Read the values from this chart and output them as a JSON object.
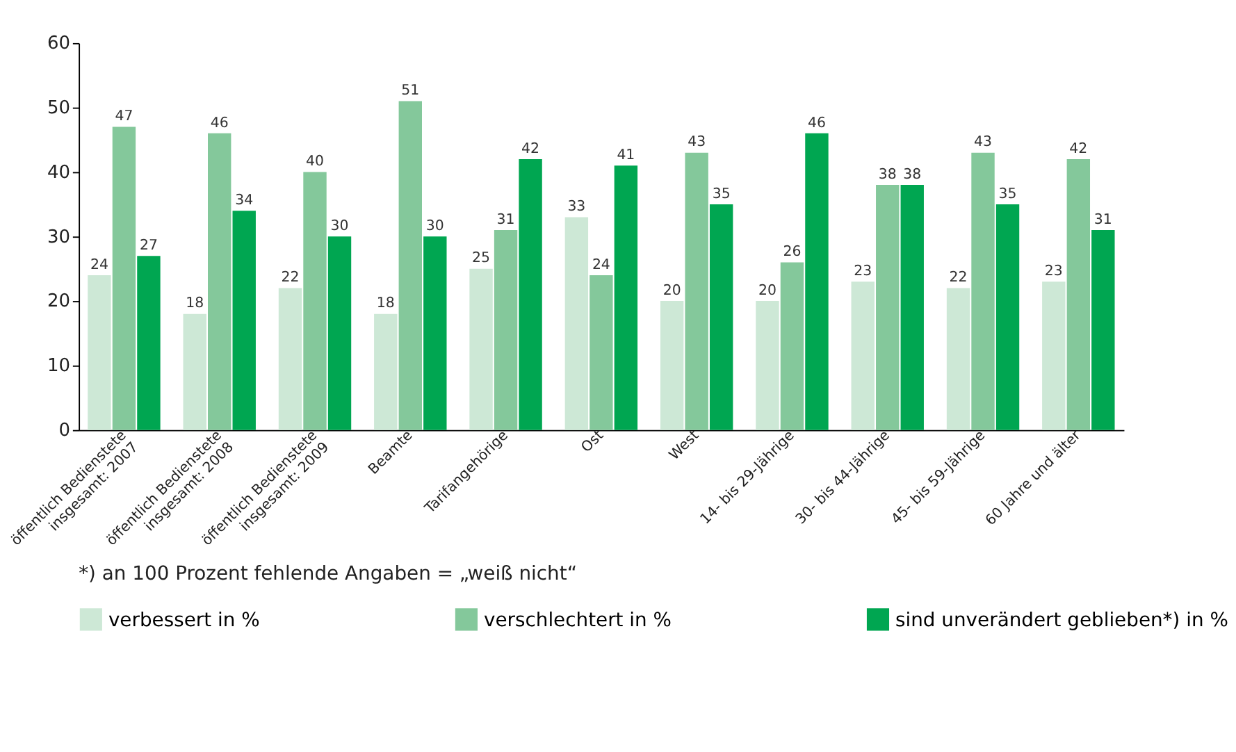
{
  "chart_data": {
    "type": "bar",
    "categories": [
      "öffentlich Bedienstete\ninsgesamt: 2007",
      "öffentlich Bedienstete\ninsgesamt: 2008",
      "öffentlich Bedienstete\ninsgesamt: 2009",
      "Beamte",
      "Tarifangehörige",
      "Ost",
      "West",
      "14- bis 29-Jährige",
      "30- bis 44-Jährige",
      "45- bis 59-Jährige",
      "60 Jahre und älter"
    ],
    "series": [
      {
        "name": "verbessert in %",
        "color": "#cde8d6",
        "values": [
          24,
          18,
          22,
          18,
          25,
          33,
          20,
          20,
          23,
          22,
          23
        ]
      },
      {
        "name": "verschlechtert in %",
        "color": "#84c89b",
        "values": [
          47,
          46,
          40,
          51,
          31,
          24,
          43,
          26,
          38,
          43,
          42
        ]
      },
      {
        "name": "sind unverändert geblieben*) in %",
        "color": "#00a651",
        "values": [
          27,
          34,
          30,
          30,
          42,
          41,
          35,
          46,
          38,
          35,
          31
        ]
      }
    ],
    "ylim": [
      0,
      60
    ],
    "yticks": [
      0,
      10,
      20,
      30,
      40,
      50,
      60
    ],
    "grid": false,
    "legend": "bottom",
    "data_labels": true,
    "annotations": [
      "*) an 100 Prozent fehlende Angaben = „weiß nicht“"
    ]
  }
}
